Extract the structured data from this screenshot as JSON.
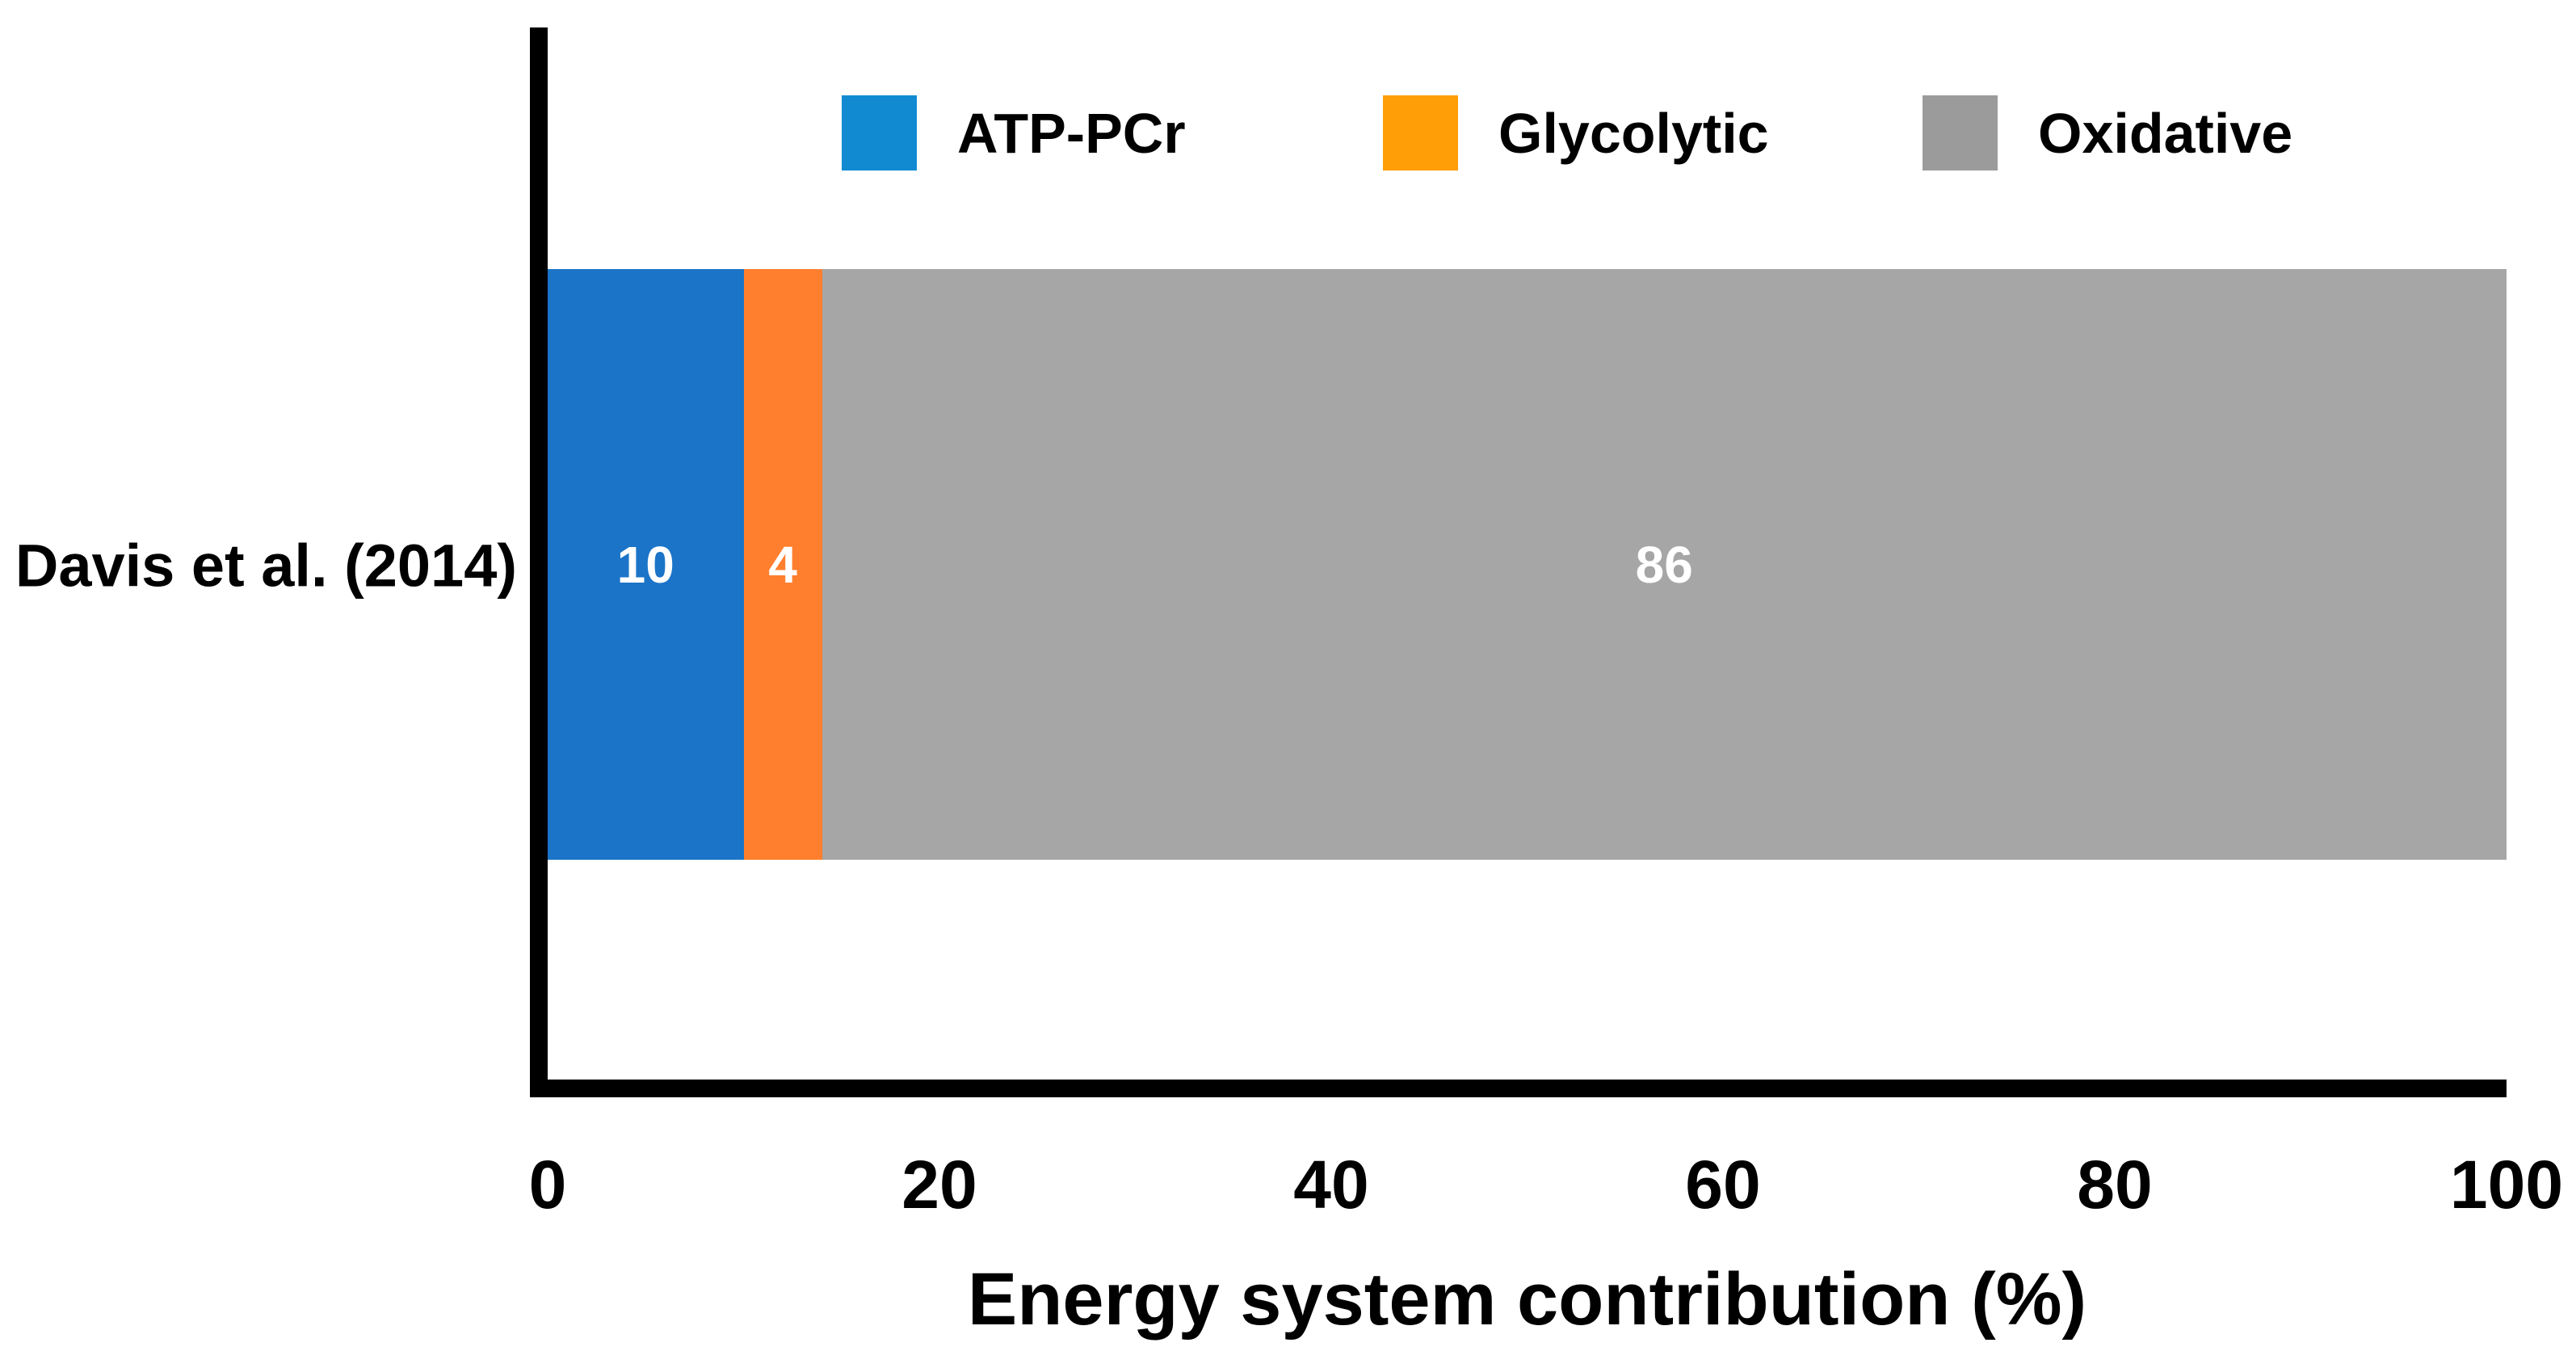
{
  "figure": {
    "background_color": "#ffffff",
    "axis_color": "#000000",
    "text_color": "#000000"
  },
  "chart_data": {
    "type": "bar",
    "orientation": "horizontal_stacked",
    "title": "",
    "xlabel": "Energy system contribution (%)",
    "ylabel": "",
    "xlim": [
      0,
      100
    ],
    "xticks": [
      "0",
      "20",
      "40",
      "60",
      "80",
      "100"
    ],
    "grid": false,
    "legend_position": "top",
    "categories": [
      "Davis et al. (2014)"
    ],
    "series": [
      {
        "name": "ATP-PCr",
        "values": [
          10
        ],
        "color": "#1b74c8",
        "legend_color": "#118ad2",
        "label_color": "#ffffff"
      },
      {
        "name": "Glycolytic",
        "values": [
          4
        ],
        "color": "#ff7f2e",
        "legend_color": "#ff9e06",
        "label_color": "#ffffff"
      },
      {
        "name": "Oxidative",
        "values": [
          86
        ],
        "color": "#a6a6a6",
        "legend_color": "#9b9b9b",
        "label_color": "#ffffff"
      }
    ]
  }
}
